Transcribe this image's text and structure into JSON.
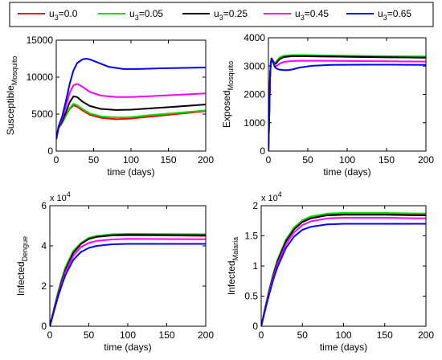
{
  "legend": {
    "items": [
      {
        "label": "u",
        "sub": "3",
        "value_text": "=0.0",
        "color": "#ff0000"
      },
      {
        "label": "u",
        "sub": "3",
        "value_text": "=0.05",
        "color": "#00dd00"
      },
      {
        "label": "u",
        "sub": "3",
        "value_text": "=0.25",
        "color": "#000000"
      },
      {
        "label": "u",
        "sub": "3",
        "value_text": "=0.45",
        "color": "#ff00ff"
      },
      {
        "label": "u",
        "sub": "3",
        "value_text": "=0.65",
        "color": "#0000ff"
      }
    ]
  },
  "chart_data": [
    {
      "type": "line",
      "xlabel": "time (days)",
      "ylabel": "Susceptible",
      "ylabel_sub": "Mosquito",
      "exponent_label": "",
      "xlim": [
        0,
        200
      ],
      "ylim": [
        0,
        15000
      ],
      "xticks": [
        0,
        50,
        100,
        150,
        200
      ],
      "xtick_labels": [
        "0",
        "50",
        "100",
        "150",
        "200"
      ],
      "yticks": [
        0,
        5000,
        10000,
        15000
      ],
      "ytick_labels": [
        "0",
        "5000",
        "10000",
        "15000"
      ],
      "series": [
        {
          "name": "u3=0.0",
          "color": "#ff0000",
          "x": [
            0,
            3,
            8,
            13,
            18,
            23,
            28,
            35,
            45,
            60,
            80,
            100,
            130,
            160,
            200
          ],
          "y": [
            1600,
            3100,
            3800,
            4800,
            5700,
            6200,
            6000,
            5500,
            4900,
            4500,
            4300,
            4400,
            4700,
            5000,
            5400
          ]
        },
        {
          "name": "u3=0.05",
          "color": "#00dd00",
          "x": [
            0,
            3,
            8,
            13,
            18,
            23,
            28,
            35,
            45,
            60,
            80,
            100,
            130,
            160,
            200
          ],
          "y": [
            1600,
            3150,
            3850,
            4900,
            5800,
            6400,
            6200,
            5700,
            5100,
            4700,
            4550,
            4600,
            4900,
            5150,
            5500
          ]
        },
        {
          "name": "u3=0.25",
          "color": "#000000",
          "x": [
            0,
            3,
            8,
            13,
            18,
            23,
            28,
            35,
            45,
            60,
            80,
            100,
            130,
            160,
            200
          ],
          "y": [
            1600,
            3200,
            4050,
            5300,
            6600,
            7400,
            7300,
            6700,
            6100,
            5700,
            5550,
            5600,
            5800,
            6000,
            6300
          ]
        },
        {
          "name": "u3=0.45",
          "color": "#ff00ff",
          "x": [
            0,
            3,
            8,
            13,
            18,
            23,
            28,
            35,
            45,
            60,
            80,
            100,
            130,
            160,
            200
          ],
          "y": [
            1600,
            3250,
            4400,
            6100,
            7900,
            8900,
            9100,
            8700,
            8000,
            7500,
            7300,
            7300,
            7450,
            7600,
            7800
          ]
        },
        {
          "name": "u3=0.65",
          "color": "#0000ff",
          "x": [
            0,
            3,
            8,
            13,
            18,
            23,
            28,
            35,
            40,
            45,
            55,
            70,
            90,
            110,
            140,
            170,
            200
          ],
          "y": [
            1600,
            3300,
            4700,
            6800,
            9100,
            10900,
            11900,
            12400,
            12500,
            12400,
            12000,
            11400,
            11100,
            11100,
            11200,
            11250,
            11300
          ]
        }
      ]
    },
    {
      "type": "line",
      "xlabel": "time (days)",
      "ylabel": "Exposed",
      "ylabel_sub": "Mosquito",
      "exponent_label": "",
      "xlim": [
        0,
        200
      ],
      "ylim": [
        0,
        4000
      ],
      "xticks": [
        0,
        50,
        100,
        150,
        200
      ],
      "xtick_labels": [
        "0",
        "50",
        "100",
        "150",
        "200"
      ],
      "yticks": [
        0,
        1000,
        2000,
        3000,
        4000
      ],
      "ytick_labels": [
        "0",
        "1000",
        "2000",
        "3000",
        "4000"
      ],
      "series": [
        {
          "name": "u3=0.0",
          "color": "#ff0000",
          "x": [
            0,
            1,
            2,
            3,
            4,
            6,
            8,
            10,
            12,
            15,
            20,
            30,
            45,
            70,
            100,
            150,
            200
          ],
          "y": [
            0,
            1200,
            2600,
            3100,
            3270,
            3180,
            3090,
            3140,
            3210,
            3280,
            3330,
            3350,
            3350,
            3340,
            3330,
            3310,
            3300
          ]
        },
        {
          "name": "u3=0.05",
          "color": "#00dd00",
          "x": [
            0,
            1,
            2,
            3,
            4,
            6,
            8,
            10,
            12,
            15,
            20,
            30,
            45,
            70,
            100,
            150,
            200
          ],
          "y": [
            0,
            1200,
            2600,
            3100,
            3270,
            3185,
            3100,
            3160,
            3240,
            3320,
            3370,
            3390,
            3390,
            3380,
            3370,
            3350,
            3340
          ]
        },
        {
          "name": "u3=0.25",
          "color": "#000000",
          "x": [
            0,
            1,
            2,
            3,
            4,
            6,
            8,
            10,
            12,
            15,
            20,
            30,
            45,
            70,
            100,
            150,
            200
          ],
          "y": [
            0,
            1200,
            2600,
            3100,
            3270,
            3170,
            3070,
            3100,
            3180,
            3260,
            3320,
            3350,
            3350,
            3340,
            3330,
            3310,
            3300
          ]
        },
        {
          "name": "u3=0.45",
          "color": "#ff00ff",
          "x": [
            0,
            1,
            2,
            3,
            4,
            6,
            8,
            10,
            12,
            15,
            20,
            30,
            45,
            70,
            100,
            150,
            200
          ],
          "y": [
            0,
            1200,
            2600,
            3100,
            3270,
            3140,
            3010,
            3000,
            3040,
            3100,
            3150,
            3180,
            3190,
            3190,
            3180,
            3170,
            3160
          ]
        },
        {
          "name": "u3=0.65",
          "color": "#0000ff",
          "x": [
            0,
            1,
            2,
            3,
            4,
            6,
            8,
            10,
            12,
            15,
            20,
            25,
            30,
            40,
            55,
            80,
            120,
            160,
            200
          ],
          "y": [
            0,
            1200,
            2600,
            3100,
            3270,
            3120,
            2980,
            2920,
            2890,
            2870,
            2860,
            2860,
            2880,
            2950,
            3010,
            3040,
            3050,
            3050,
            3040
          ]
        }
      ]
    },
    {
      "type": "line",
      "xlabel": "time (days)",
      "ylabel": "Infected",
      "ylabel_sub": "Dengue",
      "exponent_label": "x 10",
      "exponent_power": "4",
      "xlim": [
        0,
        200
      ],
      "ylim": [
        0,
        6
      ],
      "xticks": [
        0,
        50,
        100,
        150,
        200
      ],
      "xtick_labels": [
        "0",
        "50",
        "100",
        "150",
        "200"
      ],
      "yticks": [
        0,
        2,
        4,
        6
      ],
      "ytick_labels": [
        "0",
        "2",
        "4",
        "6"
      ],
      "series": [
        {
          "name": "u3=0.0",
          "color": "#ff0000",
          "x": [
            0,
            5,
            10,
            15,
            20,
            30,
            40,
            50,
            60,
            80,
            100,
            150,
            200
          ],
          "y": [
            0,
            0.8,
            1.6,
            2.3,
            2.9,
            3.7,
            4.1,
            4.35,
            4.45,
            4.52,
            4.53,
            4.52,
            4.5
          ]
        },
        {
          "name": "u3=0.05",
          "color": "#00dd00",
          "x": [
            0,
            5,
            10,
            15,
            20,
            30,
            40,
            50,
            60,
            80,
            100,
            150,
            200
          ],
          "y": [
            0,
            0.8,
            1.6,
            2.3,
            2.95,
            3.75,
            4.15,
            4.4,
            4.5,
            4.58,
            4.6,
            4.59,
            4.58
          ]
        },
        {
          "name": "u3=0.25",
          "color": "#000000",
          "x": [
            0,
            5,
            10,
            15,
            20,
            30,
            40,
            50,
            60,
            80,
            100,
            150,
            200
          ],
          "y": [
            0,
            0.75,
            1.5,
            2.2,
            2.8,
            3.65,
            4.1,
            4.35,
            4.45,
            4.53,
            4.55,
            4.54,
            4.53
          ]
        },
        {
          "name": "u3=0.45",
          "color": "#ff00ff",
          "x": [
            0,
            5,
            10,
            15,
            20,
            30,
            40,
            50,
            60,
            80,
            100,
            150,
            200
          ],
          "y": [
            0,
            0.72,
            1.45,
            2.1,
            2.7,
            3.5,
            3.95,
            4.15,
            4.25,
            4.32,
            4.35,
            4.34,
            4.33
          ]
        },
        {
          "name": "u3=0.65",
          "color": "#0000ff",
          "x": [
            0,
            5,
            10,
            15,
            20,
            30,
            40,
            50,
            60,
            80,
            100,
            150,
            200
          ],
          "y": [
            0,
            0.7,
            1.4,
            2.0,
            2.55,
            3.3,
            3.7,
            3.9,
            4.0,
            4.08,
            4.1,
            4.1,
            4.1
          ]
        }
      ]
    },
    {
      "type": "line",
      "xlabel": "time (days)",
      "ylabel": "Infected",
      "ylabel_sub": "Malaria",
      "exponent_label": "x 10",
      "exponent_power": "4",
      "xlim": [
        0,
        200
      ],
      "ylim": [
        0,
        2
      ],
      "xticks": [
        0,
        50,
        100,
        150,
        200
      ],
      "xtick_labels": [
        "0",
        "50",
        "100",
        "150",
        "200"
      ],
      "yticks": [
        0,
        0.5,
        1,
        1.5,
        2
      ],
      "ytick_labels": [
        "0",
        "0.5",
        "1",
        "1.5",
        "2"
      ],
      "series": [
        {
          "name": "u3=0.0",
          "color": "#ff0000",
          "x": [
            0,
            5,
            10,
            15,
            20,
            30,
            40,
            50,
            60,
            80,
            100,
            150,
            200
          ],
          "y": [
            0,
            0.32,
            0.62,
            0.88,
            1.1,
            1.42,
            1.62,
            1.74,
            1.8,
            1.85,
            1.86,
            1.86,
            1.85
          ]
        },
        {
          "name": "u3=0.05",
          "color": "#00dd00",
          "x": [
            0,
            5,
            10,
            15,
            20,
            30,
            40,
            50,
            60,
            80,
            100,
            150,
            200
          ],
          "y": [
            0,
            0.32,
            0.62,
            0.89,
            1.11,
            1.44,
            1.64,
            1.76,
            1.82,
            1.87,
            1.88,
            1.88,
            1.87
          ]
        },
        {
          "name": "u3=0.25",
          "color": "#000000",
          "x": [
            0,
            5,
            10,
            15,
            20,
            30,
            40,
            50,
            60,
            80,
            100,
            150,
            200
          ],
          "y": [
            0,
            0.3,
            0.6,
            0.86,
            1.08,
            1.41,
            1.61,
            1.73,
            1.79,
            1.84,
            1.85,
            1.85,
            1.84
          ]
        },
        {
          "name": "u3=0.45",
          "color": "#ff00ff",
          "x": [
            0,
            5,
            10,
            15,
            20,
            30,
            40,
            50,
            60,
            80,
            100,
            150,
            200
          ],
          "y": [
            0,
            0.3,
            0.58,
            0.83,
            1.04,
            1.36,
            1.56,
            1.68,
            1.74,
            1.79,
            1.8,
            1.8,
            1.79
          ]
        },
        {
          "name": "u3=0.65",
          "color": "#0000ff",
          "x": [
            0,
            5,
            10,
            15,
            20,
            30,
            40,
            50,
            60,
            80,
            100,
            150,
            200
          ],
          "y": [
            0,
            0.28,
            0.55,
            0.79,
            0.99,
            1.3,
            1.49,
            1.6,
            1.65,
            1.69,
            1.7,
            1.7,
            1.7
          ]
        }
      ]
    }
  ]
}
